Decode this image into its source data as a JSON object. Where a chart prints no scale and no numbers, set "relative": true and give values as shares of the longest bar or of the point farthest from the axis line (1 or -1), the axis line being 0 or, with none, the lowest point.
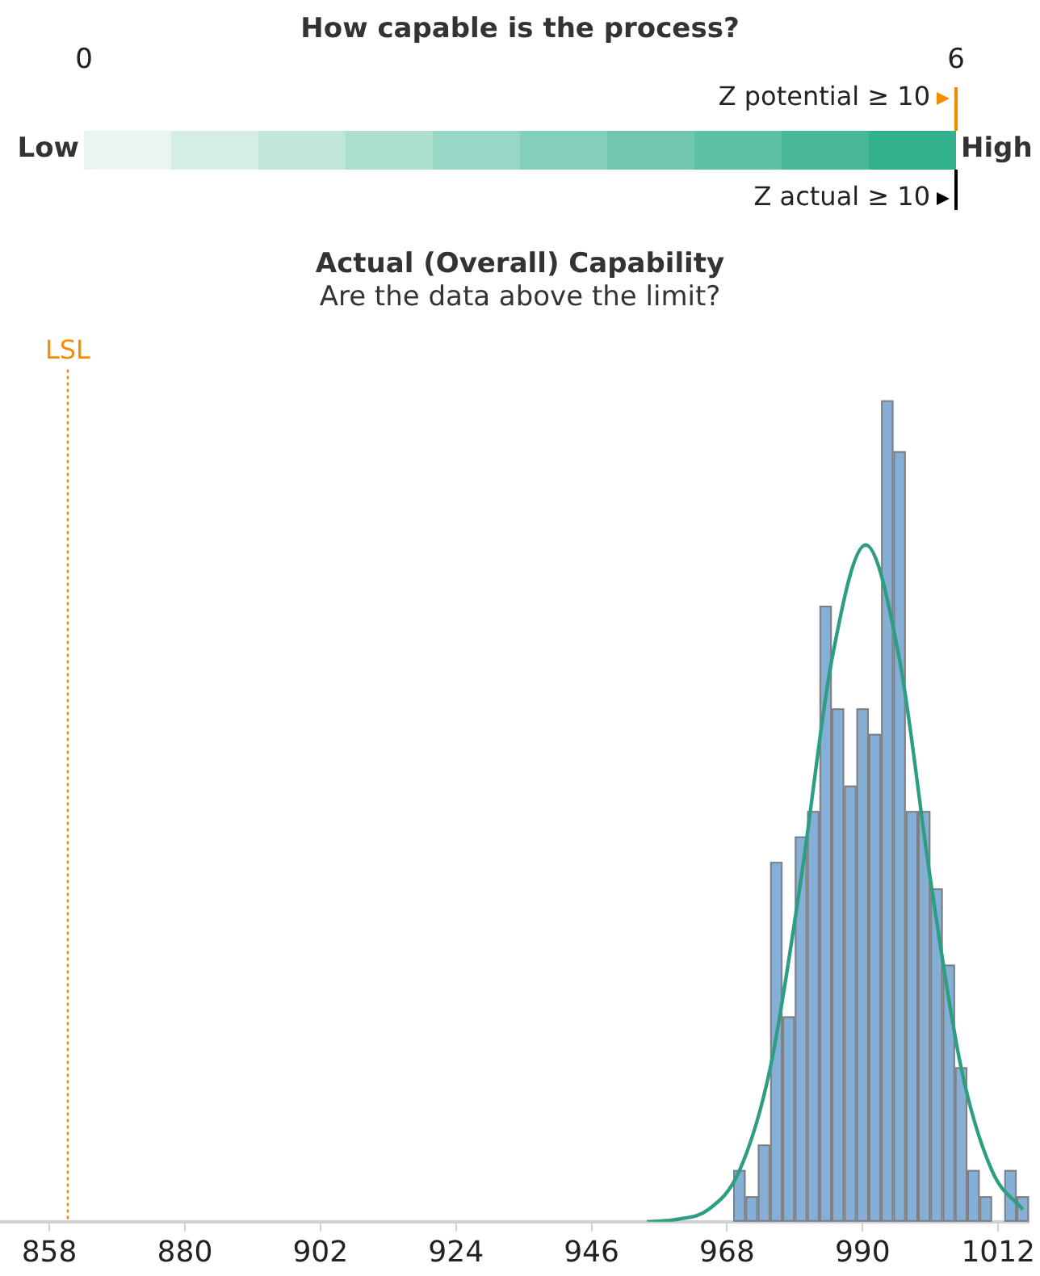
{
  "chart_data": [
    {
      "type": "other",
      "title": "How capable is the process?",
      "annotations": [
        "0",
        "6",
        "Low",
        "High",
        "Z potential ≥ 10",
        "Z actual ≥ 10"
      ]
    },
    {
      "type": "histogram",
      "title": "Actual (Overall) Capability",
      "subtitle": "Are the data above the limit?",
      "relative": true,
      "tick_labels": "x",
      "xlim": [
        850,
        1017
      ],
      "xticks": [
        858,
        880,
        902,
        924,
        946,
        968,
        990,
        1012
      ],
      "bins": [
        969,
        971,
        973,
        975,
        977,
        979,
        981,
        983,
        985,
        987,
        989,
        991,
        993,
        995,
        997,
        999,
        1001,
        1003,
        1005,
        1007,
        1009,
        1011,
        1013,
        1015,
        1017
      ],
      "series": [
        {
          "type": "histogram",
          "color": "#86afd7",
          "values": [
            0.063,
            0.031,
            0.094,
            0.438,
            0.25,
            0.469,
            0.5,
            0.75,
            0.625,
            0.531,
            0.625,
            0.594,
            1,
            0.938,
            0.5,
            0.5,
            0.406,
            0.313,
            0.188,
            0.063,
            0.031,
            0,
            0.063,
            0.031
          ]
        },
        {
          "type": "line",
          "color": "#2e9e82",
          "x": [
            955,
            960,
            965,
            970,
            975,
            980,
            985,
            990.5,
            996,
            1001,
            1006,
            1011,
            1016
          ],
          "values": [
            0.0,
            0.003,
            0.015,
            0.062,
            0.187,
            0.417,
            0.684,
            0.824,
            0.684,
            0.417,
            0.187,
            0.062,
            0.015
          ]
        }
      ],
      "ref_lines": [
        {
          "axis": "x",
          "value": 861,
          "label": "LSL",
          "color": "#f28e00",
          "line_style": "dotted"
        }
      ]
    }
  ]
}
